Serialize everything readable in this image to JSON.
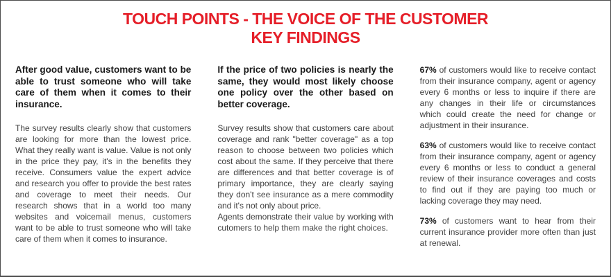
{
  "page": {
    "title_line1": "TOUCH POINTS - THE VOICE OF THE CUSTOMER",
    "title_line2": "KEY FINDINGS",
    "colors": {
      "title": "#e51e28",
      "border": "#4c4c4c",
      "heading": "#1a1a1a",
      "body": "#3f3f3f"
    }
  },
  "columns": [
    {
      "heading": "After good value, customers want to be able to trust someone who will take care of them when it comes to their insurance.",
      "paragraphs": [
        "The survey results clearly show that customers are looking for more than the lowest price. What they really want is value. Value is not only in the price they pay, it's in the benefits they receive. Consumers value the expert advice and research you offer to provide the best rates and coverage to meet their needs. Our research shows that in a world too many websites and voicemail menus, customers want to be able to trust someone who will take care of them when it comes to insurance."
      ]
    },
    {
      "heading": "If the price of two policies is nearly the same, they would most likely choose one policy over the other based on better coverage.",
      "paragraphs": [
        "Survey results show that customers care about coverage and rank \"better coverage\" as a top reason to choose between two policies which cost about the same. If they perceive that there are differences and that better coverage is of primary importance, they are clearly saying they don't see insurance as a mere commodity and it's not only about price.",
        "Agents demonstrate their value by working with cutomers to help them make the right choices."
      ]
    },
    {
      "stats": [
        {
          "stat": "67%",
          "text": "of customers would like to receive contact from their insurance company, agent or agency every 6 months or less to inquire if there are any changes in their life or circumstances which could create the need for change or adjustment in their insurance."
        },
        {
          "stat": "63%",
          "text": "of customers would like to receive contact from their insurance company, agent or agency every 6 months or less to conduct a general review of their insurance coverages and costs to find out if they are paying too much or lacking coverage they may need."
        },
        {
          "stat": "73%",
          "text": "of customers want to hear from their current insurance provider more often than just at renewal."
        }
      ]
    }
  ]
}
